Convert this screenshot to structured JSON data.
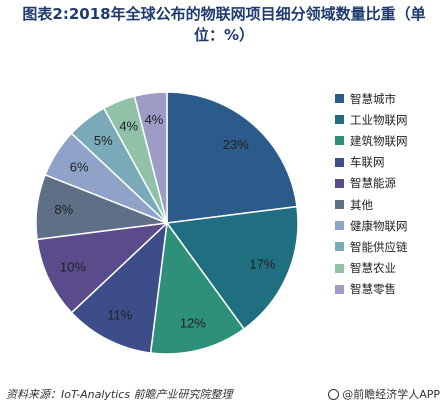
{
  "title_line1": "图表2:2018年全球公布的物联网项目细分领域数量比重（单",
  "title_line2": "位：%）",
  "source": "资料来源：IoT-Analytics  前瞻产业研究院整理",
  "brand": "@前瞻经济学人APP",
  "chart_data": {
    "type": "pie",
    "title": "图表2:2018年全球公布的物联网项目细分领域数量比重（单位：%）",
    "categories": [
      "智慧城市",
      "工业物联网",
      "建筑物联网",
      "车联网",
      "智慧能源",
      "其他",
      "健康物联网",
      "智能供应链",
      "智慧农业",
      "智慧零售"
    ],
    "values": [
      23,
      17,
      12,
      11,
      10,
      8,
      6,
      5,
      4,
      4
    ],
    "value_labels": [
      "23%",
      "17%",
      "12%",
      "11%",
      "10%",
      "8%",
      "6%",
      "5%",
      "4%",
      "4%"
    ],
    "colors": [
      "#2b5b8a",
      "#1f6f80",
      "#2e8f7a",
      "#3c4d8a",
      "#5a4c8a",
      "#5e6f86",
      "#8ea3c7",
      "#7aa9b7",
      "#8fc2a8",
      "#9c9cc6"
    ],
    "legend_position": "right"
  }
}
